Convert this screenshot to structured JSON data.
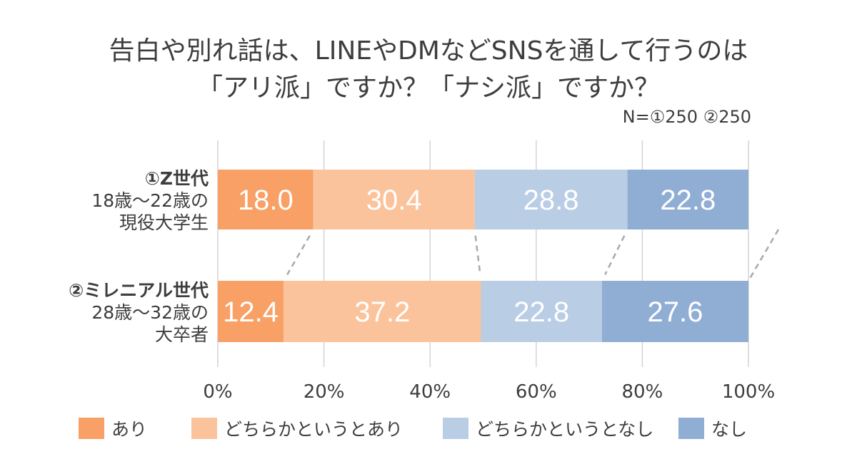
{
  "title": {
    "line1": "告白や別れ話は、LINEやDMなどSNSを通して行うのは",
    "line2": "「アリ派」ですか？「ナシ派」ですか？"
  },
  "note": "N=①250 ②250",
  "colors": {
    "text": "#3d3d3d",
    "grid": "#d4d4d4",
    "connector": "#a9a9a9"
  },
  "chart_data": {
    "type": "bar",
    "orientation": "horizontal",
    "stacked": true,
    "title": "告白や別れ話は、LINEやDMなどSNSを通して行うのは「アリ派」ですか？「ナシ派」ですか？",
    "categories": [
      {
        "label_lines": [
          "①Z世代",
          "18歳〜22歳の",
          "現役大学生"
        ]
      },
      {
        "label_lines": [
          "②ミレニアル世代",
          "28歳〜32歳の",
          "大卒者"
        ]
      }
    ],
    "series": [
      {
        "name": "あり",
        "color": "#f8a066",
        "values": [
          18.0,
          12.4
        ]
      },
      {
        "name": "どちらかというとあり",
        "color": "#fbc39b",
        "values": [
          30.4,
          37.2
        ]
      },
      {
        "name": "どちらかというとなし",
        "color": "#b9cde4",
        "values": [
          28.8,
          22.8
        ]
      },
      {
        "name": "なし",
        "color": "#90aed4",
        "values": [
          22.8,
          27.6
        ]
      }
    ],
    "xlim": [
      0,
      100
    ],
    "xticks": [
      "0%",
      "20%",
      "40%",
      "60%",
      "80%",
      "100%"
    ],
    "grid": true,
    "legend_position": "bottom"
  }
}
